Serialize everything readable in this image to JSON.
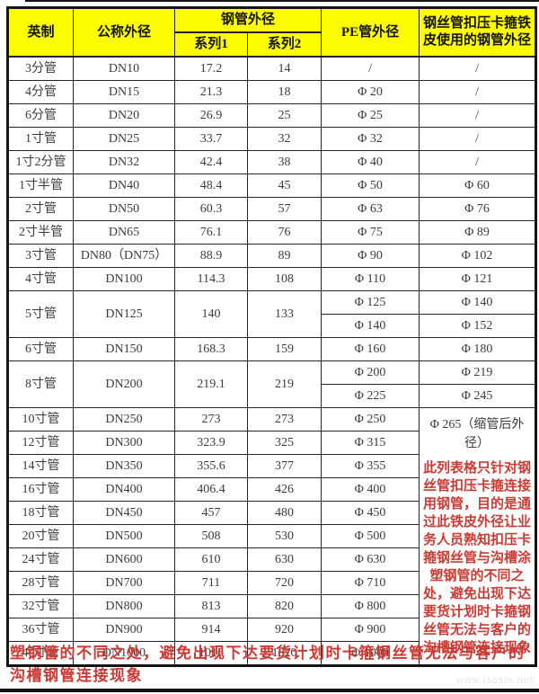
{
  "table": {
    "headers": {
      "imperial": "英制",
      "nominal": "公称外径",
      "steel_od": "钢管外径",
      "series1": "系列1",
      "series2": "系列2",
      "pe_od": "PE管外径",
      "wire_od": "钢丝管扣压卡箍铁皮使用的钢管外径"
    },
    "rows": [
      {
        "imperial": "3分管",
        "nominal": "DN10",
        "s1": "17.2",
        "s2": "14",
        "pe": [
          "/"
        ],
        "wire": [
          "/"
        ]
      },
      {
        "imperial": "4分管",
        "nominal": "DN15",
        "s1": "21.3",
        "s2": "18",
        "pe": [
          "Φ 20"
        ],
        "wire": [
          "/"
        ]
      },
      {
        "imperial": "6分管",
        "nominal": "DN20",
        "s1": "26.9",
        "s2": "25",
        "pe": [
          "Φ 25"
        ],
        "wire": [
          "/"
        ]
      },
      {
        "imperial": "1寸管",
        "nominal": "DN25",
        "s1": "33.7",
        "s2": "32",
        "pe": [
          "Φ 32"
        ],
        "wire": [
          "/"
        ]
      },
      {
        "imperial": "1寸2分管",
        "nominal": "DN32",
        "s1": "42.4",
        "s2": "38",
        "pe": [
          "Φ 40"
        ],
        "wire": [
          "/"
        ]
      },
      {
        "imperial": "1寸半管",
        "nominal": "DN40",
        "s1": "48.4",
        "s2": "45",
        "pe": [
          "Φ 50"
        ],
        "wire": [
          "Φ 60"
        ]
      },
      {
        "imperial": "2寸管",
        "nominal": "DN50",
        "s1": "60.3",
        "s2": "57",
        "pe": [
          "Φ 63"
        ],
        "wire": [
          "Φ 76"
        ]
      },
      {
        "imperial": "2寸半管",
        "nominal": "DN65",
        "s1": "76.1",
        "s2": "76",
        "pe": [
          "Φ 75"
        ],
        "wire": [
          "Φ 89"
        ]
      },
      {
        "imperial": "3寸管",
        "nominal": "DN80（DN75）",
        "s1": "88.9",
        "s2": "89",
        "pe": [
          "Φ 90"
        ],
        "wire": [
          "Φ 102"
        ]
      },
      {
        "imperial": "4寸管",
        "nominal": "DN100",
        "s1": "114.3",
        "s2": "108",
        "pe": [
          "Φ 110"
        ],
        "wire": [
          "Φ 121"
        ]
      },
      {
        "imperial": "5寸管",
        "nominal": "DN125",
        "s1": "140",
        "s2": "133",
        "pe": [
          "Φ 125",
          "Φ 140"
        ],
        "wire": [
          "Φ 140",
          "Φ 152"
        ]
      },
      {
        "imperial": "6寸管",
        "nominal": "DN150",
        "s1": "168.3",
        "s2": "159",
        "pe": [
          "Φ 160"
        ],
        "wire": [
          "Φ 180"
        ]
      },
      {
        "imperial": "8寸管",
        "nominal": "DN200",
        "s1": "219.1",
        "s2": "219",
        "pe": [
          "Φ 200",
          "Φ 225"
        ],
        "wire": [
          "Φ 219",
          "Φ 245"
        ]
      },
      {
        "imperial": "10寸管",
        "nominal": "DN250",
        "s1": "273",
        "s2": "273",
        "pe": [
          "Φ 250"
        ],
        "wire": "note"
      },
      {
        "imperial": "12寸管",
        "nominal": "DN300",
        "s1": "323.9",
        "s2": "325",
        "pe": [
          "Φ 315"
        ]
      },
      {
        "imperial": "14寸管",
        "nominal": "DN350",
        "s1": "355.6",
        "s2": "377",
        "pe": [
          "Φ 355"
        ]
      },
      {
        "imperial": "16寸管",
        "nominal": "DN400",
        "s1": "406.4",
        "s2": "426",
        "pe": [
          "Φ 400"
        ]
      },
      {
        "imperial": "18寸管",
        "nominal": "DN450",
        "s1": "457",
        "s2": "480",
        "pe": [
          "Φ 450"
        ]
      },
      {
        "imperial": "20寸管",
        "nominal": "DN500",
        "s1": "508",
        "s2": "530",
        "pe": [
          "Φ 500"
        ]
      },
      {
        "imperial": "24寸管",
        "nominal": "DN600",
        "s1": "610",
        "s2": "630",
        "pe": [
          "Φ 630"
        ]
      },
      {
        "imperial": "28寸管",
        "nominal": "DN700",
        "s1": "711",
        "s2": "720",
        "pe": [
          "Φ 710"
        ]
      },
      {
        "imperial": "32寸管",
        "nominal": "DN800",
        "s1": "813",
        "s2": "820",
        "pe": [
          "Φ 800"
        ]
      },
      {
        "imperial": "36寸管",
        "nominal": "DN900",
        "s1": "914",
        "s2": "920",
        "pe": [
          "Φ 900"
        ]
      },
      {
        "imperial": "40寸管",
        "nominal": "DN1000",
        "s1": "1016",
        "s2": "1020",
        "pe": [
          "Φ 1000"
        ]
      }
    ],
    "note_od": "Φ 265（缩管后外径）",
    "note_red": "此列表格只针对钢丝管扣压卡箍连接用钢管，目的是通过此铁皮外径让业务人员熟知扣压卡箍钢丝管与沟槽涂塑钢管的不同之处，避免出现下达要货计划时卡箍钢丝管无法与客户的沟槽钢管连接现象"
  },
  "footer_note": "塑钢管的不同之处，避免出现下达要货计划时卡箍钢丝管无法与客户的沟槽钢管连接现象",
  "watermark": "www.jsosm.net",
  "colors": {
    "header_bg": "#fdfd00",
    "note_red": "#cd3a34",
    "border": "#141414"
  }
}
